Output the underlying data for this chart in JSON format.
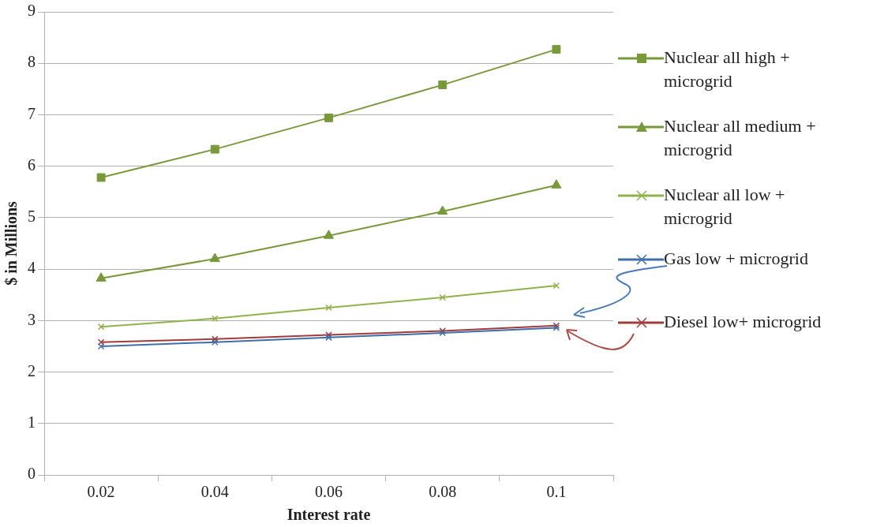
{
  "chart_data": {
    "type": "line",
    "xlabel": "Interest rate",
    "ylabel": "$ in Millions",
    "categories": [
      "0.02",
      "0.04",
      "0.06",
      "0.08",
      "0.1"
    ],
    "series": [
      {
        "name": "Nuclear all high + microgrid",
        "color": "#77993a",
        "marker": "square",
        "values": [
          5.78,
          6.33,
          6.94,
          7.58,
          8.27
        ]
      },
      {
        "name": "Nuclear all medium + microgrid",
        "color": "#77993a",
        "marker": "triangle",
        "values": [
          3.82,
          4.2,
          4.65,
          5.12,
          5.63
        ]
      },
      {
        "name": "Nuclear all low + microgrid",
        "color": "#8fb24a",
        "marker": "cross",
        "values": [
          2.88,
          3.04,
          3.25,
          3.45,
          3.68
        ]
      },
      {
        "name": "Gas low + microgrid",
        "color": "#3f6ea8",
        "marker": "cross",
        "values": [
          2.5,
          2.58,
          2.67,
          2.76,
          2.86
        ]
      },
      {
        "name": "Diesel low+ microgrid",
        "color": "#a33b3b",
        "marker": "cross",
        "values": [
          2.58,
          2.64,
          2.72,
          2.8,
          2.9
        ]
      }
    ],
    "ylim": [
      0,
      9
    ],
    "yticks": [
      0,
      1,
      2,
      3,
      4,
      5,
      6,
      7,
      8,
      9
    ],
    "grid": "y",
    "legend": "right",
    "line_style": "solid"
  }
}
